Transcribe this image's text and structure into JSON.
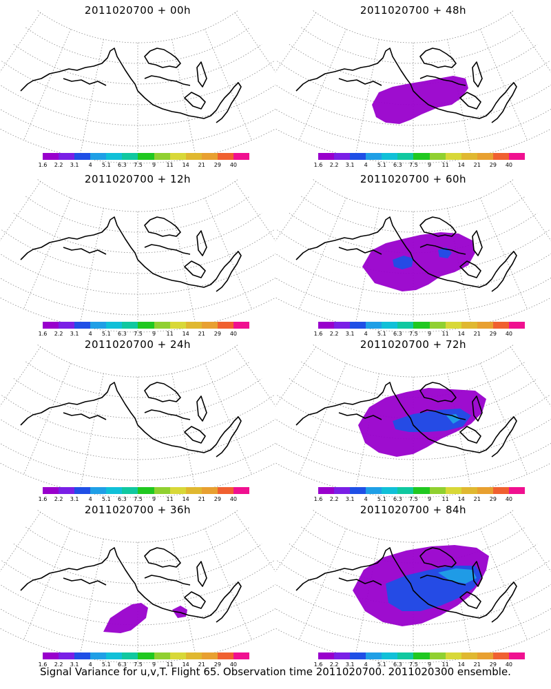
{
  "panels": [
    {
      "title": "2011020700 + 00h",
      "level": 0
    },
    {
      "title": "2011020700 + 48h",
      "level": 2
    },
    {
      "title": "2011020700 + 12h",
      "level": 0
    },
    {
      "title": "2011020700 + 60h",
      "level": 3
    },
    {
      "title": "2011020700 + 24h",
      "level": 0
    },
    {
      "title": "2011020700 + 72h",
      "level": 4
    },
    {
      "title": "2011020700 + 36h",
      "level": 1
    },
    {
      "title": "2011020700 + 84h",
      "level": 5
    }
  ],
  "colorbar": {
    "labels": [
      "1.6",
      "2.2",
      "3.1",
      "4",
      "5.1",
      "6.3",
      "7.5",
      "9",
      "11",
      "14",
      "21",
      "29",
      "40"
    ],
    "colors": [
      "#9900cc",
      "#7a1fe6",
      "#1f4fe6",
      "#1f9fe6",
      "#10c0d8",
      "#10c8a0",
      "#20c820",
      "#90d030",
      "#d8d838",
      "#e0b830",
      "#e8a030",
      "#f06030",
      "#f01090"
    ]
  },
  "caption": "Signal Variance for u,v,T. Flight 65. Observation time 2011020700. 2011020300 ensemble."
}
